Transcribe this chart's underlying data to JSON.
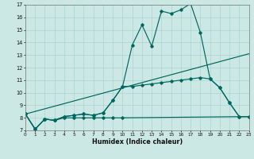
{
  "xlabel": "Humidex (Indice chaleur)",
  "bg_color": "#cce8e5",
  "grid_color": "#aad4d0",
  "line_color": "#006660",
  "xlim": [
    0,
    23
  ],
  "ylim": [
    7,
    17
  ],
  "xtick_vals": [
    0,
    1,
    2,
    3,
    4,
    5,
    6,
    7,
    8,
    9,
    10,
    11,
    12,
    13,
    14,
    15,
    16,
    17,
    18,
    19,
    20,
    21,
    22,
    23
  ],
  "ytick_vals": [
    7,
    8,
    9,
    10,
    11,
    12,
    13,
    14,
    15,
    16,
    17
  ],
  "curve1_x": [
    0,
    1,
    2,
    3,
    4,
    5,
    6,
    7,
    8,
    9,
    10,
    11,
    12,
    13,
    14,
    15,
    16,
    17,
    18,
    19,
    20,
    21,
    22,
    23
  ],
  "curve1_y": [
    8.3,
    7.1,
    7.9,
    7.8,
    8.1,
    8.2,
    8.3,
    8.2,
    8.4,
    9.4,
    10.5,
    13.8,
    15.4,
    13.7,
    16.5,
    16.3,
    16.6,
    17.1,
    14.8,
    11.1,
    10.4,
    9.2,
    8.1,
    8.1
  ],
  "curve2_x": [
    0,
    1,
    2,
    3,
    4,
    5,
    6,
    7,
    8,
    9,
    10,
    11,
    12,
    13,
    14,
    15,
    16,
    17,
    18,
    19,
    20,
    21,
    22,
    23
  ],
  "curve2_y": [
    8.3,
    7.1,
    7.9,
    7.8,
    8.1,
    8.2,
    8.3,
    8.2,
    8.4,
    9.4,
    10.5,
    10.5,
    10.6,
    10.7,
    10.8,
    10.9,
    11.0,
    11.1,
    11.2,
    11.1,
    10.4,
    9.2,
    8.1,
    8.1
  ],
  "curve3_x": [
    0,
    1,
    2,
    3,
    4,
    5,
    6,
    7,
    8,
    9,
    10,
    23
  ],
  "curve3_y": [
    8.3,
    7.1,
    7.9,
    7.8,
    8.0,
    8.0,
    8.0,
    8.0,
    8.0,
    8.0,
    8.0,
    8.1
  ],
  "trend_x": [
    0,
    23
  ],
  "trend_y": [
    8.3,
    13.1
  ]
}
